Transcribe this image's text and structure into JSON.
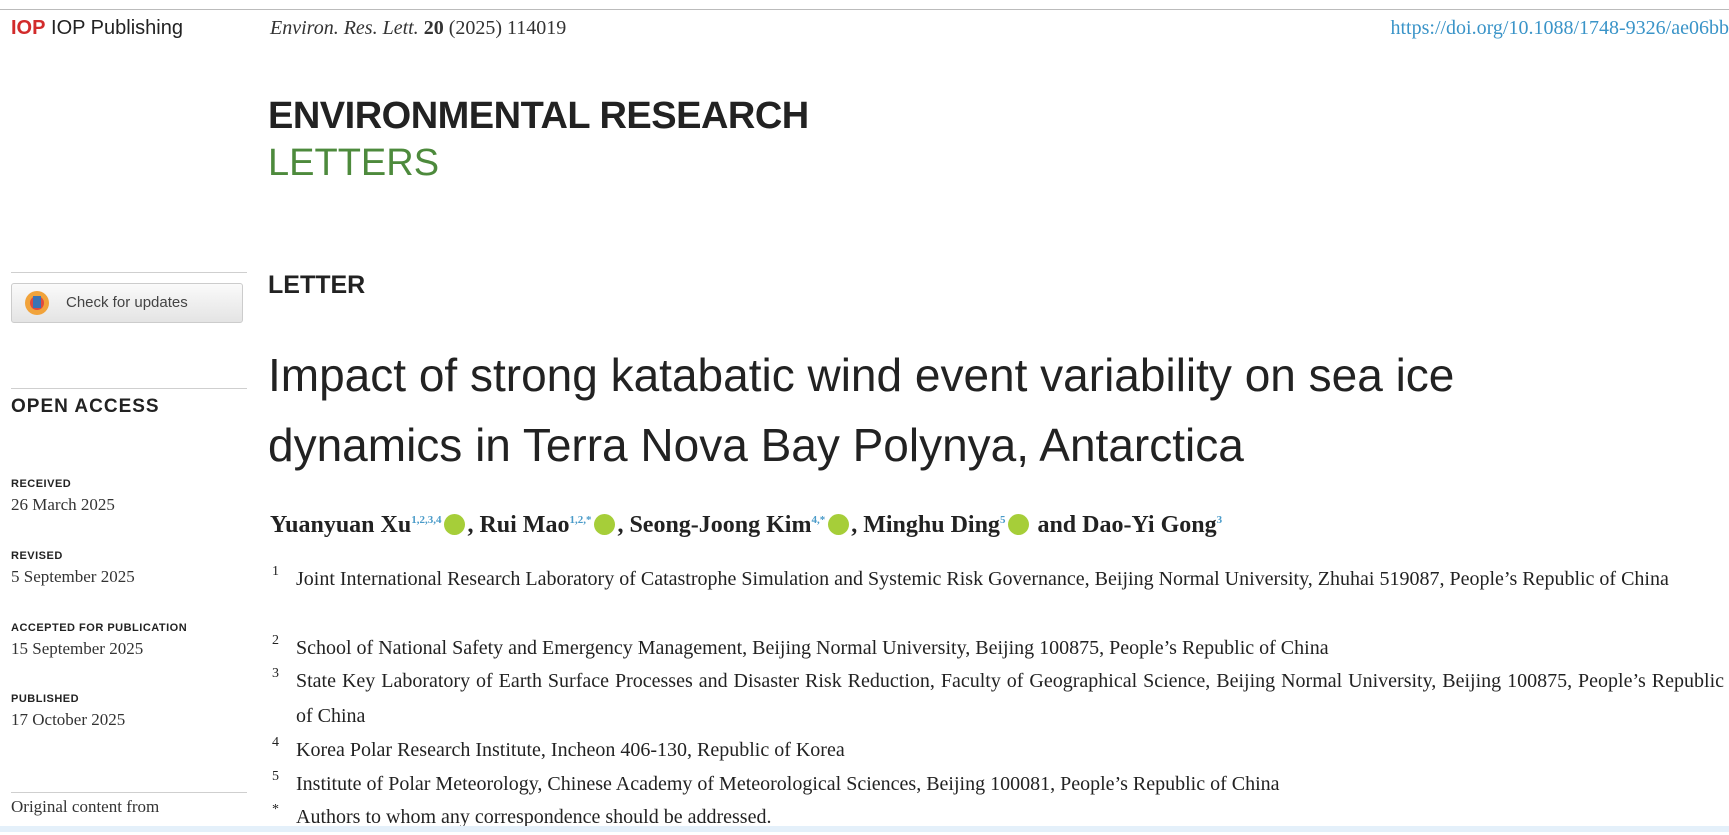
{
  "header": {
    "publisher": "IOP Publishing",
    "citation": {
      "journal": "Environ. Res. Lett.",
      "volume": "20",
      "year_issue": "(2025) 114019"
    },
    "doi": "https://doi.org/10.1088/1748-9326/ae06bb"
  },
  "journal": {
    "line1": "ENVIRONMENTAL RESEARCH",
    "line2": "LETTERS"
  },
  "sidebar": {
    "check_updates": "Check for updates",
    "open_access": "OPEN ACCESS",
    "dates": [
      {
        "label": "RECEIVED",
        "date": "26 March 2025"
      },
      {
        "label": "REVISED",
        "date": "5 September 2025"
      },
      {
        "label": "ACCEPTED FOR PUBLICATION",
        "date": "15 September 2025"
      },
      {
        "label": "PUBLISHED",
        "date": "17 October 2025"
      }
    ],
    "license": "Original content from"
  },
  "article": {
    "type": "LETTER",
    "title": "Impact of strong katabatic wind event variability on sea ice dynamics in Terra Nova Bay Polynya, Antarctica",
    "authors": [
      {
        "name": "Yuanyuan Xu",
        "affiliations": "1,2,3,4"
      },
      {
        "name": "Rui Mao",
        "affiliations": "1,2,*"
      },
      {
        "name": "Seong-Joong Kim",
        "affiliations": "4,*"
      },
      {
        "name": "Minghu Ding",
        "affiliations": "5"
      },
      {
        "name": "Dao-Yi Gong",
        "affiliations": "3"
      }
    ],
    "separator": ",",
    "conjunction": "and",
    "affiliations": [
      {
        "mark": "1",
        "text": "Joint International Research Laboratory of Catastrophe Simulation and Systemic Risk Governance, Beijing Normal University, Zhuhai 519087, People’s Republic of China"
      },
      {
        "mark": "2",
        "text": "School of National Safety and Emergency Management, Beijing Normal University, Beijing 100875, People’s Republic of China"
      },
      {
        "mark": "3",
        "text": "State Key Laboratory of Earth Surface Processes and Disaster Risk Reduction, Faculty of Geographical Science, Beijing Normal University, Beijing 100875, People’s Republic of China"
      },
      {
        "mark": "4",
        "text": "Korea Polar Research Institute, Incheon 406-130, Republic of Korea"
      },
      {
        "mark": "5",
        "text": "Institute of Polar Meteorology, Chinese Academy of Meteorological Sciences, Beijing 100081, People’s Republic of China"
      },
      {
        "mark": "*",
        "text": "Authors to whom any correspondence should be addressed."
      }
    ]
  }
}
